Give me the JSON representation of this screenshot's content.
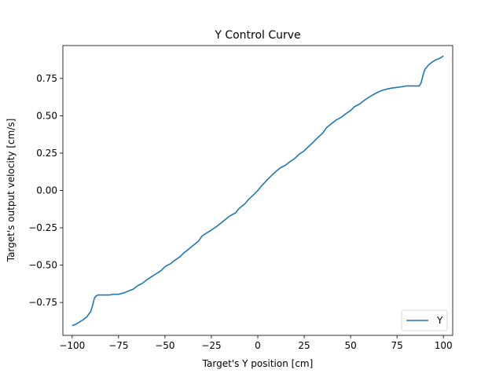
{
  "chart_data": {
    "type": "line",
    "title": "Y Control Curve",
    "xlabel": "Target's Y position [cm]",
    "ylabel": "Target's output velocity [cm/s]",
    "xlim": [
      -105,
      105
    ],
    "ylim": [
      -0.97,
      0.97
    ],
    "xticks": [
      -100,
      -75,
      -50,
      -25,
      0,
      25,
      50,
      75,
      100
    ],
    "yticks": [
      -0.75,
      -0.5,
      -0.25,
      0.0,
      0.25,
      0.5,
      0.75
    ],
    "xtick_labels": [
      "−100",
      "−75",
      "−50",
      "−25",
      "0",
      "25",
      "50",
      "75",
      "100"
    ],
    "ytick_labels": [
      "−0.75",
      "−0.50",
      "−0.25",
      "0.00",
      "0.25",
      "0.50",
      "0.75"
    ],
    "grid": false,
    "legend_position": "lower-right",
    "colors": {
      "series": "#1f77b4",
      "axes": "#000000",
      "background": "#ffffff"
    },
    "series": [
      {
        "name": "Y",
        "x": [
          -100,
          -98,
          -96,
          -94,
          -92,
          -90,
          -89,
          -88,
          -87,
          -86,
          -84,
          -80,
          -78,
          -75,
          -72,
          -70,
          -67,
          -65,
          -62,
          -60,
          -57,
          -55,
          -52,
          -50,
          -47,
          -45,
          -42,
          -40,
          -37,
          -35,
          -32,
          -30,
          -27,
          -25,
          -22,
          -20,
          -17,
          -15,
          -12,
          -10,
          -7,
          -5,
          -2,
          0,
          2,
          5,
          7,
          10,
          12,
          15,
          17,
          20,
          22,
          25,
          27,
          30,
          32,
          35,
          37,
          40,
          42,
          45,
          47,
          50,
          52,
          55,
          57,
          60,
          62,
          65,
          67,
          70,
          72,
          75,
          78,
          80,
          84,
          86,
          87,
          88,
          89,
          90,
          92,
          94,
          96,
          98,
          100
        ],
        "y": [
          -0.905,
          -0.895,
          -0.88,
          -0.865,
          -0.845,
          -0.81,
          -0.77,
          -0.72,
          -0.705,
          -0.7,
          -0.7,
          -0.7,
          -0.695,
          -0.695,
          -0.685,
          -0.675,
          -0.66,
          -0.64,
          -0.62,
          -0.6,
          -0.575,
          -0.56,
          -0.535,
          -0.51,
          -0.49,
          -0.47,
          -0.445,
          -0.42,
          -0.39,
          -0.37,
          -0.34,
          -0.305,
          -0.28,
          -0.265,
          -0.24,
          -0.22,
          -0.19,
          -0.17,
          -0.15,
          -0.12,
          -0.09,
          -0.06,
          -0.025,
          0.0,
          0.03,
          0.07,
          0.095,
          0.13,
          0.15,
          0.17,
          0.19,
          0.215,
          0.24,
          0.265,
          0.29,
          0.325,
          0.35,
          0.385,
          0.42,
          0.45,
          0.47,
          0.49,
          0.51,
          0.535,
          0.56,
          0.58,
          0.6,
          0.625,
          0.64,
          0.66,
          0.67,
          0.68,
          0.685,
          0.69,
          0.695,
          0.7,
          0.7,
          0.7,
          0.7,
          0.72,
          0.77,
          0.81,
          0.84,
          0.86,
          0.875,
          0.885,
          0.9
        ]
      }
    ]
  }
}
